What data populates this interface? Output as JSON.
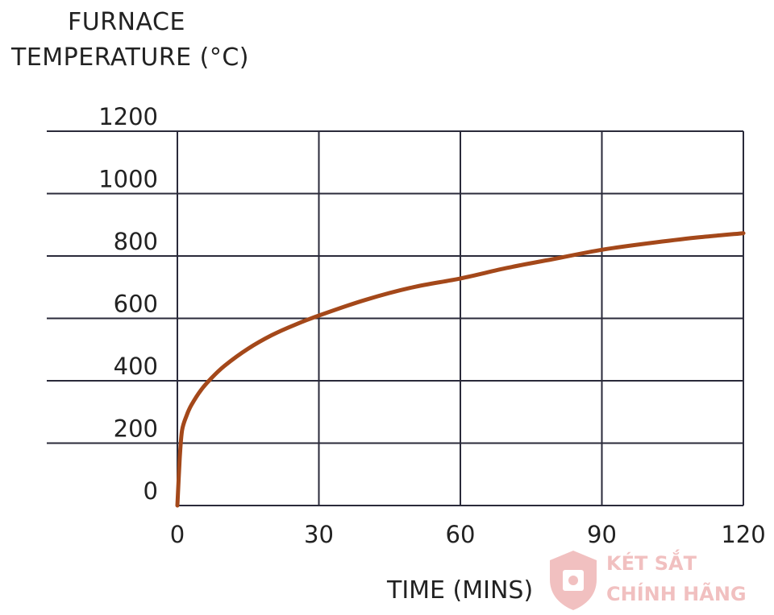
{
  "chart_data": {
    "type": "line",
    "ylabel_lines": [
      "FURNACE",
      "TEMPERATURE (°C)"
    ],
    "xlabel": "TIME (MINS)",
    "xlim": [
      0,
      120
    ],
    "ylim": [
      0,
      1200
    ],
    "xticks": [
      0,
      30,
      60,
      90,
      120
    ],
    "yticks": [
      0,
      200,
      400,
      600,
      800,
      1000,
      1200
    ],
    "grid": true,
    "series": [
      {
        "color": "#a4481a",
        "x": [
          0,
          0.5,
          1,
          2,
          3,
          5,
          7,
          10,
          15,
          20,
          25,
          30,
          40,
          50,
          60,
          70,
          80,
          90,
          100,
          110,
          120
        ],
        "y": [
          0,
          151,
          241,
          290,
          323,
          370,
          405,
          448,
          503,
          546,
          580,
          609,
          660,
          700,
          728,
          762,
          791,
          820,
          841,
          859,
          873
        ]
      }
    ]
  },
  "watermark": {
    "line1": "KÉT SẮT",
    "line2": "CHÍNH HÃNG"
  }
}
